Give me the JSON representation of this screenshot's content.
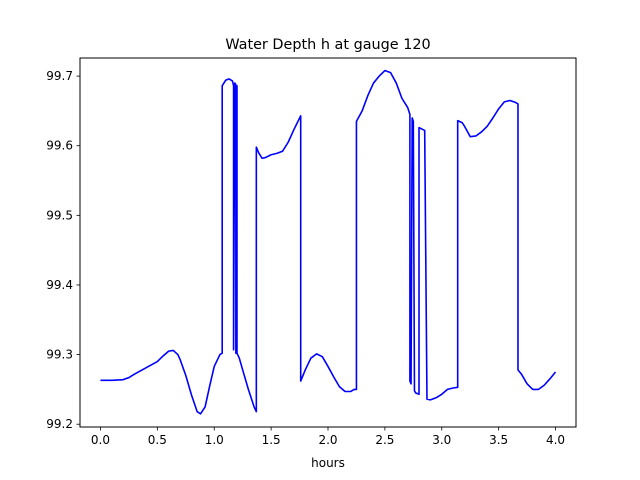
{
  "chart_data": {
    "type": "line",
    "title": "Water Depth h at gauge 120",
    "xlabel": "hours",
    "ylabel": "",
    "xlim": [
      -0.18,
      4.18
    ],
    "ylim": [
      99.196,
      99.726
    ],
    "xticks": [
      0.0,
      0.5,
      1.0,
      1.5,
      2.0,
      2.5,
      3.0,
      3.5,
      4.0
    ],
    "xtick_labels": [
      "0.0",
      "0.5",
      "1.0",
      "1.5",
      "2.0",
      "2.5",
      "3.0",
      "3.5",
      "4.0"
    ],
    "yticks": [
      99.2,
      99.3,
      99.4,
      99.5,
      99.6,
      99.7
    ],
    "ytick_labels": [
      "99.2",
      "99.3",
      "99.4",
      "99.5",
      "99.6",
      "99.7"
    ],
    "grid": false,
    "legend": "none",
    "series": [
      {
        "color": "#0000ff",
        "x": [
          0.0,
          0.1,
          0.2,
          0.25,
          0.3,
          0.4,
          0.5,
          0.55,
          0.6,
          0.64,
          0.68,
          0.7,
          0.75,
          0.8,
          0.85,
          0.88,
          0.92,
          0.96,
          1.0,
          1.05,
          1.07,
          1.07,
          1.1,
          1.13,
          1.16,
          1.17,
          1.17,
          1.18,
          1.19,
          1.19,
          1.2,
          1.2,
          1.22,
          1.25,
          1.3,
          1.35,
          1.37,
          1.37,
          1.39,
          1.42,
          1.45,
          1.5,
          1.55,
          1.6,
          1.65,
          1.7,
          1.76,
          1.76,
          1.8,
          1.85,
          1.9,
          1.95,
          2.0,
          2.05,
          2.1,
          2.15,
          2.2,
          2.23,
          2.25,
          2.25,
          2.3,
          2.35,
          2.4,
          2.45,
          2.5,
          2.55,
          2.6,
          2.65,
          2.7,
          2.72,
          2.72,
          2.73,
          2.74,
          2.75,
          2.76,
          2.77,
          2.8,
          2.8,
          2.85,
          2.85,
          2.87,
          2.9,
          2.95,
          3.0,
          3.05,
          3.1,
          3.14,
          3.14,
          3.18,
          3.2,
          3.25,
          3.3,
          3.35,
          3.4,
          3.45,
          3.5,
          3.55,
          3.6,
          3.65,
          3.67,
          3.67,
          3.7,
          3.75,
          3.8,
          3.85,
          3.9,
          3.95,
          4.0
        ],
        "y": [
          99.263,
          99.263,
          99.264,
          99.267,
          99.272,
          99.281,
          99.29,
          99.298,
          99.305,
          99.306,
          99.3,
          99.293,
          99.27,
          99.242,
          99.218,
          99.215,
          99.225,
          99.255,
          99.283,
          99.3,
          99.302,
          99.686,
          99.694,
          99.696,
          99.693,
          99.686,
          99.307,
          99.69,
          99.688,
          99.302,
          99.686,
          99.302,
          99.295,
          99.278,
          99.25,
          99.225,
          99.218,
          99.598,
          99.59,
          99.582,
          99.583,
          99.587,
          99.589,
          99.592,
          99.605,
          99.623,
          99.643,
          99.262,
          99.278,
          99.295,
          99.301,
          99.297,
          99.283,
          99.268,
          99.254,
          99.247,
          99.247,
          99.25,
          99.25,
          99.635,
          99.65,
          99.672,
          99.69,
          99.7,
          99.708,
          99.705,
          99.69,
          99.668,
          99.655,
          99.645,
          99.262,
          99.258,
          99.64,
          99.635,
          99.248,
          99.245,
          99.243,
          99.626,
          99.622,
          99.62,
          99.236,
          99.235,
          99.238,
          99.243,
          99.25,
          99.252,
          99.253,
          99.636,
          99.633,
          99.628,
          99.613,
          99.614,
          99.62,
          99.628,
          99.64,
          99.653,
          99.663,
          99.665,
          99.662,
          99.66,
          99.278,
          99.272,
          99.258,
          99.25,
          99.25,
          99.256,
          99.265,
          99.275
        ]
      }
    ]
  }
}
